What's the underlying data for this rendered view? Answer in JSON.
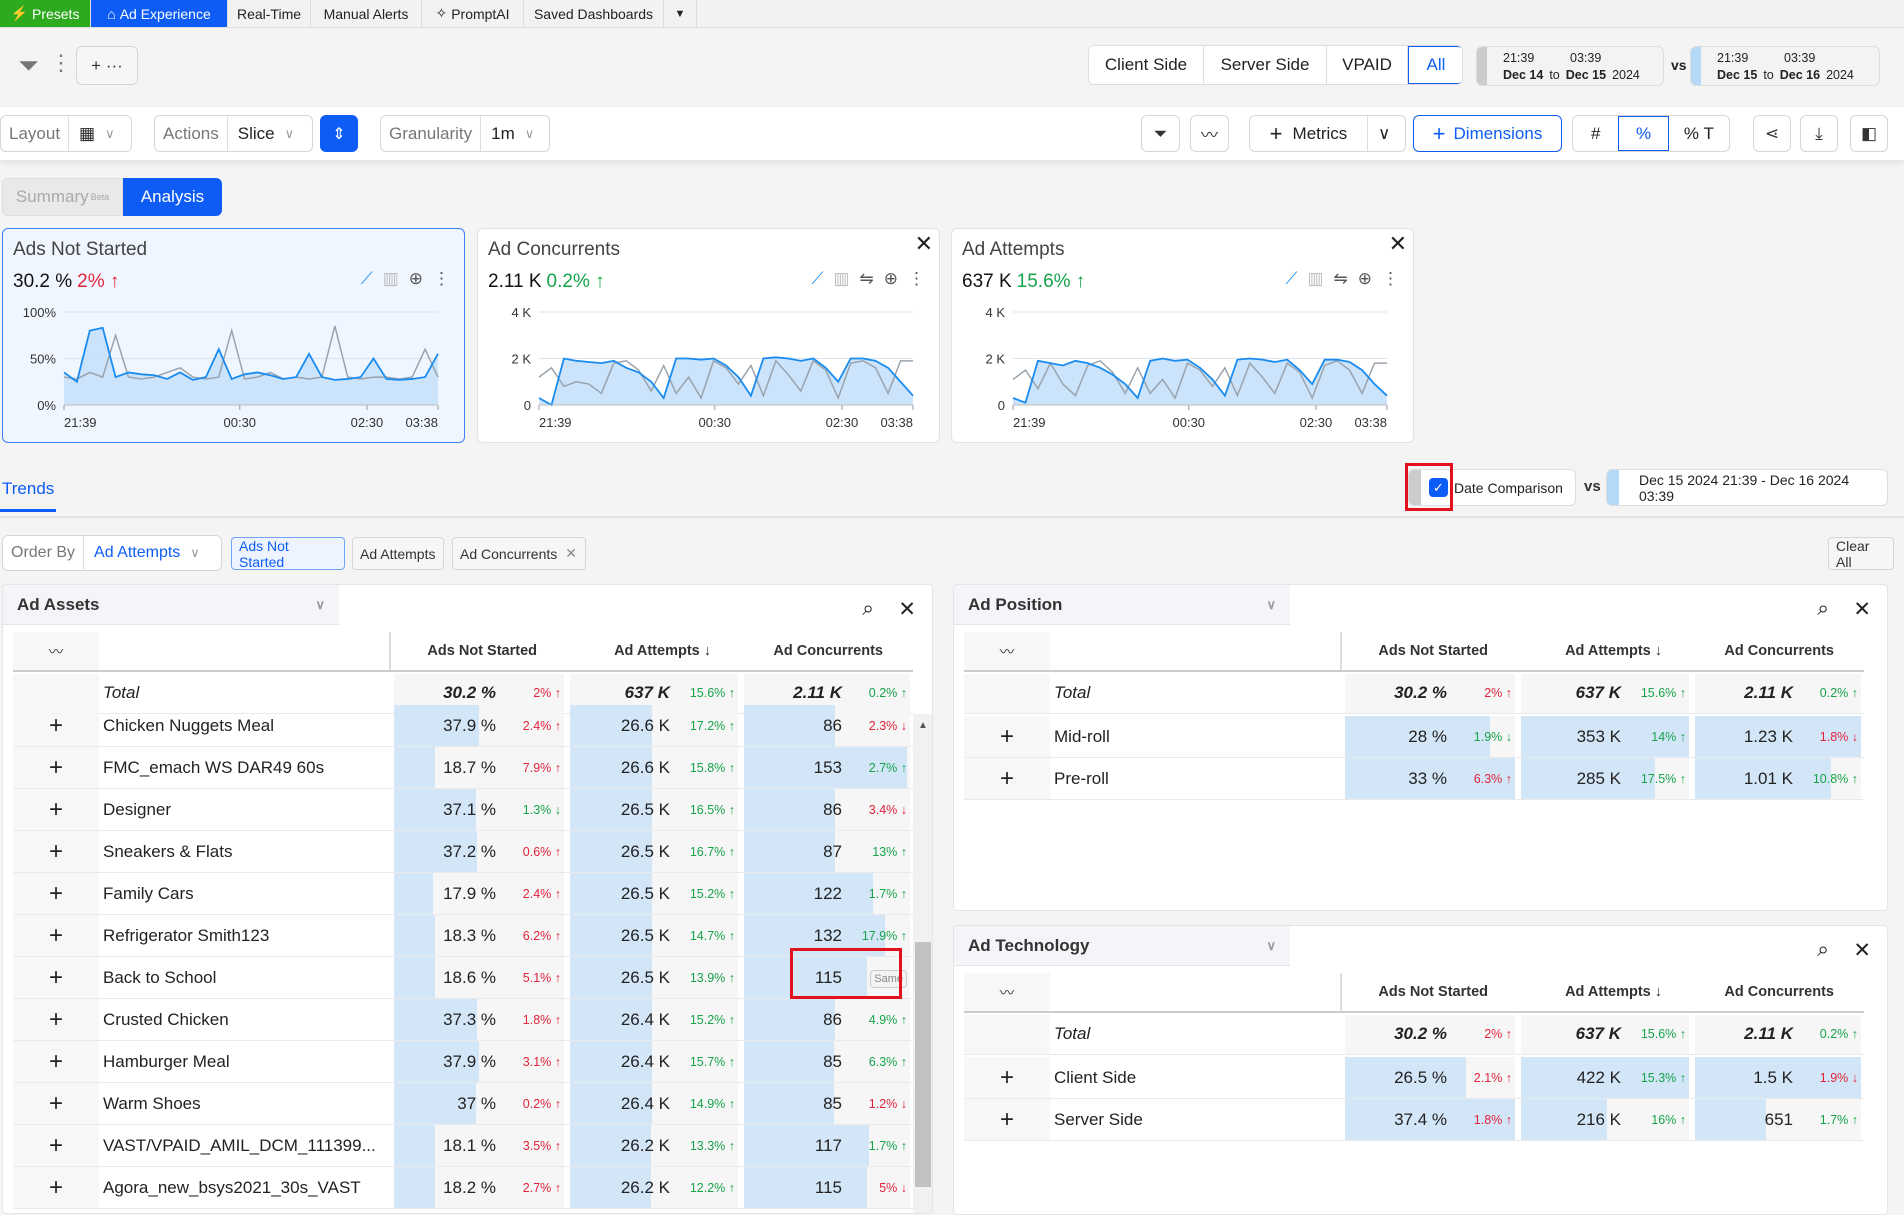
{
  "nav": {
    "tabs": [
      "Presets",
      "Ad Experience",
      "Real-Time",
      "Manual Alerts",
      "PromptAI",
      "Saved Dashboards"
    ],
    "more": "▼"
  },
  "filters": {
    "add_label": "+ ···",
    "segments": [
      "Client Side",
      "Server Side",
      "VPAID",
      "All"
    ],
    "selected_segment": "All",
    "compare_range": {
      "from_time": "21:39",
      "to_time": "03:39",
      "from_date": "Dec 14",
      "to": "to",
      "to_date": "Dec 15",
      "year": "2024"
    },
    "vs": "vs",
    "current_range": {
      "from_time": "21:39",
      "to_time": "03:39",
      "from_date": "Dec 15",
      "to": "to",
      "to_date": "Dec 16",
      "year": "2024"
    }
  },
  "toolbar": {
    "layout_label": "Layout",
    "actions_label": "Actions",
    "actions_value": "Slice",
    "granularity_label": "Granularity",
    "granularity_value": "1m",
    "metrics_label": "Metrics",
    "dimensions_label": "Dimensions",
    "format_options": [
      "#",
      "%",
      "% T"
    ],
    "selected_format": "%"
  },
  "view_tabs": {
    "summary": "Summary",
    "beta": "Beta",
    "analysis": "Analysis"
  },
  "cards": [
    {
      "title": "Ads Not Started",
      "value": "30.2 %",
      "delta": "2% ↑",
      "tone": "red"
    },
    {
      "title": "Ad Concurrents",
      "value": "2.11 K",
      "delta": "0.2% ↑",
      "tone": "green"
    },
    {
      "title": "Ad Attempts",
      "value": "637 K",
      "delta": "15.6% ↑",
      "tone": "green"
    }
  ],
  "chart_data": [
    {
      "type": "line",
      "title": "Ads Not Started",
      "ylim": [
        0,
        100
      ],
      "yticks": [
        "0%",
        "50%",
        "100%"
      ],
      "ytick_values": [
        0,
        50,
        100
      ],
      "xticks": [
        "21:39",
        "00:30",
        "02:30",
        "03:38"
      ],
      "xtick_pos": [
        0,
        0.47,
        0.81,
        1
      ],
      "series": [
        {
          "name": "current",
          "color": "#1a8cf0",
          "values": [
            35,
            25,
            80,
            83,
            30,
            35,
            33,
            32,
            28,
            35,
            27,
            30,
            60,
            28,
            33,
            35,
            32,
            28,
            30,
            55,
            30,
            27,
            28,
            30,
            50,
            28,
            27,
            28,
            30,
            55
          ]
        },
        {
          "name": "previous",
          "color": "#9aa3ad",
          "values": [
            30,
            28,
            35,
            30,
            75,
            30,
            28,
            30,
            35,
            40,
            30,
            28,
            30,
            80,
            28,
            30,
            35,
            28,
            30,
            28,
            30,
            85,
            30,
            28,
            30,
            30,
            28,
            30,
            60,
            30
          ]
        }
      ]
    },
    {
      "type": "line",
      "title": "Ad Concurrents",
      "ylim": [
        0,
        4000
      ],
      "yticks": [
        "0",
        "2 K",
        "4 K"
      ],
      "ytick_values": [
        0,
        2000,
        4000
      ],
      "xticks": [
        "21:39",
        "00:30",
        "02:30",
        "03:38"
      ],
      "xtick_pos": [
        0,
        0.47,
        0.81,
        1
      ],
      "series": [
        {
          "name": "current",
          "color": "#1a8cf0",
          "values": [
            300,
            0,
            2000,
            1900,
            1850,
            1800,
            1900,
            1600,
            1400,
            1000,
            300,
            2000,
            2000,
            1950,
            2000,
            1700,
            1200,
            400,
            2000,
            2050,
            2000,
            1900,
            2000,
            1600,
            1000,
            2000,
            2000,
            1900,
            1600,
            1000,
            400
          ]
        },
        {
          "name": "previous",
          "color": "#9aa3ad",
          "values": [
            1200,
            1600,
            800,
            1000,
            900,
            500,
            1800,
            1900,
            1500,
            600,
            1700,
            500,
            1200,
            300,
            1900,
            1600,
            900,
            1700,
            400,
            1900,
            1300,
            600,
            1900,
            1500,
            300,
            1800,
            1900,
            1600,
            500,
            1900,
            1900
          ]
        }
      ]
    },
    {
      "type": "line",
      "title": "Ad Attempts",
      "ylim": [
        0,
        4000
      ],
      "yticks": [
        "0",
        "2 K",
        "4 K"
      ],
      "ytick_values": [
        0,
        2000,
        4000
      ],
      "xticks": [
        "21:39",
        "00:30",
        "02:30",
        "03:38"
      ],
      "xtick_pos": [
        0,
        0.47,
        0.81,
        1
      ],
      "series": [
        {
          "name": "current",
          "color": "#1a8cf0",
          "values": [
            300,
            100,
            1900,
            1800,
            1700,
            1900,
            1800,
            1600,
            1300,
            900,
            300,
            1900,
            2000,
            1900,
            1950,
            1600,
            1100,
            400,
            1950,
            2000,
            1950,
            1850,
            1950,
            1500,
            900,
            1950,
            1950,
            1850,
            1500,
            900,
            400
          ]
        },
        {
          "name": "previous",
          "color": "#9aa3ad",
          "values": [
            1100,
            1500,
            700,
            1800,
            900,
            400,
            1700,
            1900,
            1400,
            500,
            1600,
            500,
            1100,
            300,
            1800,
            1500,
            800,
            1600,
            400,
            1800,
            1200,
            500,
            1800,
            1400,
            300,
            1700,
            1900,
            1500,
            500,
            1800,
            1800
          ]
        }
      ]
    }
  ],
  "trends": {
    "tab": "Trends",
    "date_comparison": "Date Comparison",
    "vs": "vs",
    "range": "Dec 15 2024 21:39 - Dec 16 2024 03:39"
  },
  "order": {
    "label": "Order By",
    "value": "Ad Attempts",
    "chips": [
      "Ads Not Started",
      "Ad Attempts",
      "Ad Concurrents"
    ],
    "clear_all": "Clear All"
  },
  "columns": [
    "Ads Not Started",
    "Ad Attempts ↓",
    "Ad Concurrents"
  ],
  "panels": [
    {
      "title": "Ad Assets",
      "total": {
        "name": "Total",
        "cells": [
          {
            "v": "30.2 %",
            "d": "2% ↑",
            "t": "red"
          },
          {
            "v": "637 K",
            "d": "15.6% ↑",
            "t": "green"
          },
          {
            "v": "2.11 K",
            "d": "0.2% ↑",
            "t": "green"
          }
        ]
      },
      "rows": [
        {
          "name": "Chicken Nuggets Meal",
          "cells": [
            {
              "v": "37.9 %",
              "d": "2.4% ↑",
              "t": "red",
              "b": 0.5
            },
            {
              "v": "26.6 K",
              "d": "17.2% ↑",
              "t": "green",
              "b": 0.49
            },
            {
              "v": "86",
              "d": "2.3% ↓",
              "t": "red",
              "b": 0.55
            }
          ]
        },
        {
          "name": "FMC_emach WS DAR49 60s",
          "cells": [
            {
              "v": "18.7 %",
              "d": "7.9% ↑",
              "t": "red",
              "b": 0.24
            },
            {
              "v": "26.6 K",
              "d": "15.8% ↑",
              "t": "green",
              "b": 0.49
            },
            {
              "v": "153",
              "d": "2.7% ↑",
              "t": "green",
              "b": 0.98
            }
          ]
        },
        {
          "name": "Designer",
          "cells": [
            {
              "v": "37.1 %",
              "d": "1.3% ↓",
              "t": "green",
              "b": 0.48
            },
            {
              "v": "26.5 K",
              "d": "16.5% ↑",
              "t": "green",
              "b": 0.49
            },
            {
              "v": "86",
              "d": "3.4% ↓",
              "t": "red",
              "b": 0.55
            }
          ]
        },
        {
          "name": "Sneakers & Flats",
          "cells": [
            {
              "v": "37.2 %",
              "d": "0.6% ↑",
              "t": "red",
              "b": 0.49
            },
            {
              "v": "26.5 K",
              "d": "16.7% ↑",
              "t": "green",
              "b": 0.49
            },
            {
              "v": "87",
              "d": "13% ↑",
              "t": "green",
              "b": 0.55
            }
          ]
        },
        {
          "name": "Family Cars",
          "cells": [
            {
              "v": "17.9 %",
              "d": "2.4% ↑",
              "t": "red",
              "b": 0.23
            },
            {
              "v": "26.5 K",
              "d": "15.2% ↑",
              "t": "green",
              "b": 0.49
            },
            {
              "v": "122",
              "d": "1.7% ↑",
              "t": "green",
              "b": 0.78
            }
          ]
        },
        {
          "name": "Refrigerator Smith123",
          "cells": [
            {
              "v": "18.3 %",
              "d": "6.2% ↑",
              "t": "red",
              "b": 0.24
            },
            {
              "v": "26.5 K",
              "d": "14.7% ↑",
              "t": "green",
              "b": 0.49
            },
            {
              "v": "132",
              "d": "17.9% ↑",
              "t": "green",
              "b": 0.85
            }
          ]
        },
        {
          "name": "Back to School",
          "cells": [
            {
              "v": "18.6 %",
              "d": "5.1% ↑",
              "t": "red",
              "b": 0.24
            },
            {
              "v": "26.5 K",
              "d": "13.9% ↑",
              "t": "green",
              "b": 0.49
            },
            {
              "v": "115",
              "d": "Same",
              "t": "same",
              "b": 0.74
            }
          ]
        },
        {
          "name": "Crusted Chicken",
          "cells": [
            {
              "v": "37.3 %",
              "d": "1.8% ↑",
              "t": "red",
              "b": 0.49
            },
            {
              "v": "26.4 K",
              "d": "15.2% ↑",
              "t": "green",
              "b": 0.49
            },
            {
              "v": "86",
              "d": "4.9% ↑",
              "t": "green",
              "b": 0.55
            }
          ]
        },
        {
          "name": "Hamburger Meal",
          "cells": [
            {
              "v": "37.9 %",
              "d": "3.1% ↑",
              "t": "red",
              "b": 0.5
            },
            {
              "v": "26.4 K",
              "d": "15.7% ↑",
              "t": "green",
              "b": 0.49
            },
            {
              "v": "85",
              "d": "6.3% ↑",
              "t": "green",
              "b": 0.54
            }
          ]
        },
        {
          "name": "Warm Shoes",
          "cells": [
            {
              "v": "37 %",
              "d": "0.2% ↑",
              "t": "red",
              "b": 0.48
            },
            {
              "v": "26.4 K",
              "d": "14.9% ↑",
              "t": "green",
              "b": 0.49
            },
            {
              "v": "85",
              "d": "1.2% ↓",
              "t": "red",
              "b": 0.54
            }
          ]
        },
        {
          "name": "VAST/VPAID_AMIL_DCM_111399...",
          "cells": [
            {
              "v": "18.1 %",
              "d": "3.5% ↑",
              "t": "red",
              "b": 0.24
            },
            {
              "v": "26.2 K",
              "d": "13.3% ↑",
              "t": "green",
              "b": 0.48
            },
            {
              "v": "117",
              "d": "1.7% ↑",
              "t": "green",
              "b": 0.75
            }
          ]
        },
        {
          "name": "Agora_new_bsys2021_30s_VAST",
          "cells": [
            {
              "v": "18.2 %",
              "d": "2.7% ↑",
              "t": "red",
              "b": 0.24
            },
            {
              "v": "26.2 K",
              "d": "12.2% ↑",
              "t": "green",
              "b": 0.48
            },
            {
              "v": "115",
              "d": "5% ↓",
              "t": "red",
              "b": 0.74
            }
          ]
        }
      ]
    },
    {
      "title": "Ad Position",
      "total": {
        "name": "Total",
        "cells": [
          {
            "v": "30.2 %",
            "d": "2% ↑",
            "t": "red"
          },
          {
            "v": "637 K",
            "d": "15.6% ↑",
            "t": "green"
          },
          {
            "v": "2.11 K",
            "d": "0.2% ↑",
            "t": "green"
          }
        ]
      },
      "rows": [
        {
          "name": "Mid-roll",
          "cells": [
            {
              "v": "28 %",
              "d": "1.9% ↓",
              "t": "green",
              "b": 0.85
            },
            {
              "v": "353 K",
              "d": "14% ↑",
              "t": "green",
              "b": 1.0
            },
            {
              "v": "1.23 K",
              "d": "1.8% ↓",
              "t": "red",
              "b": 1.0
            }
          ]
        },
        {
          "name": "Pre-roll",
          "cells": [
            {
              "v": "33 %",
              "d": "6.3% ↑",
              "t": "red",
              "b": 1.0
            },
            {
              "v": "285 K",
              "d": "17.5% ↑",
              "t": "green",
              "b": 0.8
            },
            {
              "v": "1.01 K",
              "d": "10.8% ↑",
              "t": "green",
              "b": 0.82
            }
          ]
        }
      ]
    },
    {
      "title": "Ad Technology",
      "total": {
        "name": "Total",
        "cells": [
          {
            "v": "30.2 %",
            "d": "2% ↑",
            "t": "red"
          },
          {
            "v": "637 K",
            "d": "15.6% ↑",
            "t": "green"
          },
          {
            "v": "2.11 K",
            "d": "0.2% ↑",
            "t": "green"
          }
        ]
      },
      "rows": [
        {
          "name": "Client Side",
          "cells": [
            {
              "v": "26.5 %",
              "d": "2.1% ↑",
              "t": "red",
              "b": 0.71
            },
            {
              "v": "422 K",
              "d": "15.3% ↑",
              "t": "green",
              "b": 1.0
            },
            {
              "v": "1.5 K",
              "d": "1.9% ↓",
              "t": "red",
              "b": 1.0
            }
          ]
        },
        {
          "name": "Server Side",
          "cells": [
            {
              "v": "37.4 %",
              "d": "1.8% ↑",
              "t": "red",
              "b": 1.0
            },
            {
              "v": "216 K",
              "d": "16% ↑",
              "t": "green",
              "b": 0.51
            },
            {
              "v": "651",
              "d": "1.7% ↑",
              "t": "green",
              "b": 0.43
            }
          ]
        }
      ]
    }
  ],
  "colors": {
    "accent": "#0d5cf5",
    "presets": "#2eaa1f",
    "up_bad": "#e0243b",
    "good": "#16a34a",
    "bar": "#d3e6f8",
    "highlight": "#e3101e"
  }
}
